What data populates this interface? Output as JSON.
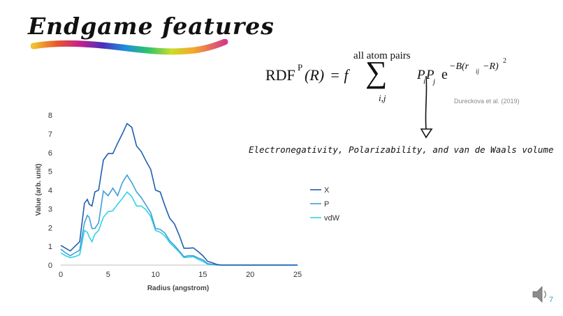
{
  "slide": {
    "title": "Endgame features",
    "page_number": "7",
    "citation": "Dureckova et al. (2019)",
    "properties_text": "Electronegativity, Polarizability, and van de Waals volume",
    "formula": {
      "lhs_main": "RDF",
      "lhs_sup": "P",
      "lhs_arg": "(R)",
      "eq": "= f",
      "sum_top": "all atom pairs",
      "sum_symbol": "∑",
      "sum_bottom": "i,j",
      "p1": "P",
      "p1_sub": "i",
      "p2": "P",
      "p2_sub": "j",
      "exp_base": "e",
      "exp_sup": "−B(r",
      "exp_sub": "ij",
      "exp_tail": "−R)",
      "exp_sq": "2"
    },
    "colors": {
      "X": "#1f5fae",
      "P": "#3f9fd8",
      "vdW": "#2fd4e6",
      "axis": "#bfbfbf",
      "citation": "#8a8a8a"
    },
    "icons": [
      "speaker-icon",
      "arrow-icon",
      "rainbow-brush-icon"
    ]
  },
  "chart_data": {
    "type": "line",
    "xlabel": "Radius (angstrom)",
    "ylabel": "Value (arb. unit)",
    "xlim": [
      0,
      25
    ],
    "ylim": [
      0,
      8
    ],
    "xticks": [
      0,
      5,
      10,
      15,
      20,
      25
    ],
    "yticks": [
      0,
      1,
      2,
      3,
      4,
      5,
      6,
      7,
      8
    ],
    "grid": false,
    "legend_position": "right",
    "x": [
      0,
      0.5,
      1,
      1.5,
      2,
      2.5,
      2.8,
      3,
      3.3,
      3.6,
      4,
      4.5,
      5,
      5.5,
      6,
      6.5,
      7,
      7.5,
      8,
      8.5,
      9,
      9.5,
      10,
      10.5,
      11,
      11.5,
      12,
      12.5,
      13,
      13.5,
      14,
      14.5,
      15,
      15.5,
      16,
      16.5,
      17,
      18,
      19,
      20,
      21,
      22,
      23,
      24,
      25
    ],
    "series": [
      {
        "name": "X",
        "values": [
          1.05,
          0.9,
          0.75,
          1.0,
          1.25,
          3.3,
          3.5,
          3.25,
          3.15,
          3.9,
          4.0,
          5.6,
          5.95,
          5.95,
          6.5,
          7.0,
          7.55,
          7.35,
          6.35,
          6.05,
          5.55,
          5.1,
          4.0,
          3.9,
          3.15,
          2.5,
          2.2,
          1.6,
          0.9,
          0.9,
          0.92,
          0.72,
          0.5,
          0.2,
          0.12,
          0.03,
          0.0,
          0.0,
          0.0,
          0.0,
          0.0,
          0.0,
          0.0,
          0.0,
          0.0
        ]
      },
      {
        "name": "P",
        "values": [
          0.85,
          0.65,
          0.5,
          0.65,
          0.8,
          2.25,
          2.65,
          2.55,
          1.95,
          1.95,
          2.25,
          3.95,
          3.7,
          4.1,
          3.7,
          4.4,
          4.8,
          4.4,
          3.9,
          3.6,
          3.2,
          2.8,
          1.95,
          1.9,
          1.7,
          1.3,
          1.05,
          0.75,
          0.45,
          0.5,
          0.5,
          0.38,
          0.28,
          0.08,
          0.04,
          0.01,
          0.0,
          0.0,
          0.0,
          0.0,
          0.0,
          0.0,
          0.0,
          0.0,
          0.0
        ]
      },
      {
        "name": "vdW",
        "values": [
          0.65,
          0.5,
          0.4,
          0.45,
          0.55,
          1.85,
          1.75,
          1.5,
          1.25,
          1.65,
          1.85,
          2.55,
          2.85,
          2.9,
          3.25,
          3.55,
          3.9,
          3.65,
          3.15,
          3.15,
          2.95,
          2.6,
          1.85,
          1.75,
          1.55,
          1.2,
          0.95,
          0.7,
          0.4,
          0.42,
          0.45,
          0.3,
          0.2,
          0.05,
          0.02,
          0.0,
          0.0,
          0.0,
          0.0,
          0.0,
          0.0,
          0.0,
          0.0,
          0.0,
          0.0
        ]
      }
    ]
  }
}
